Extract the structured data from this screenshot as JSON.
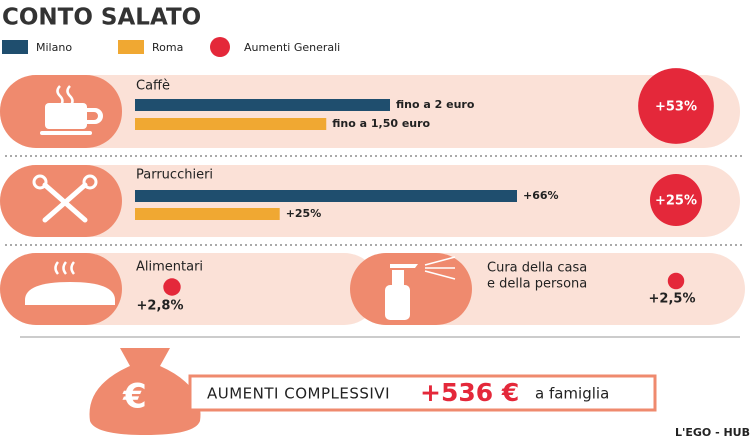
{
  "title": "CONTO SALATO",
  "legend": [
    {
      "name": "Milano",
      "color": "#1f4e6e"
    },
    {
      "name": "Roma",
      "color": "#f0a832"
    },
    {
      "name": "Aumenti Generali",
      "color": "#e4283a"
    }
  ],
  "panels": [
    {
      "label": "Caffè",
      "milano": {
        "value": 2,
        "value_label": "fino a 2 euro"
      },
      "roma": {
        "value": 1.5,
        "value_label": "fino a 1,50 euro"
      },
      "general": {
        "value": 53,
        "value_label": "+53%"
      }
    },
    {
      "label": "Parrucchieri",
      "milano": {
        "value": 66,
        "value_label": "+66%"
      },
      "roma": {
        "value": 25,
        "value_label": "+25%"
      },
      "general": {
        "value": 25,
        "value_label": "+25%"
      }
    },
    {
      "label": "Alimentari",
      "general": {
        "value": 2.8,
        "value_label": "+2,8%"
      }
    },
    {
      "label_lines": [
        "Cura della casa",
        "e della persona"
      ],
      "general": {
        "value": 2.5,
        "value_label": "+2,5%"
      }
    }
  ],
  "total": {
    "label": "AUMENTI COMPLESSIVI",
    "value_label": "+536 €",
    "suffix": "a famiglia"
  },
  "credit": "L'EGO - HUB"
}
